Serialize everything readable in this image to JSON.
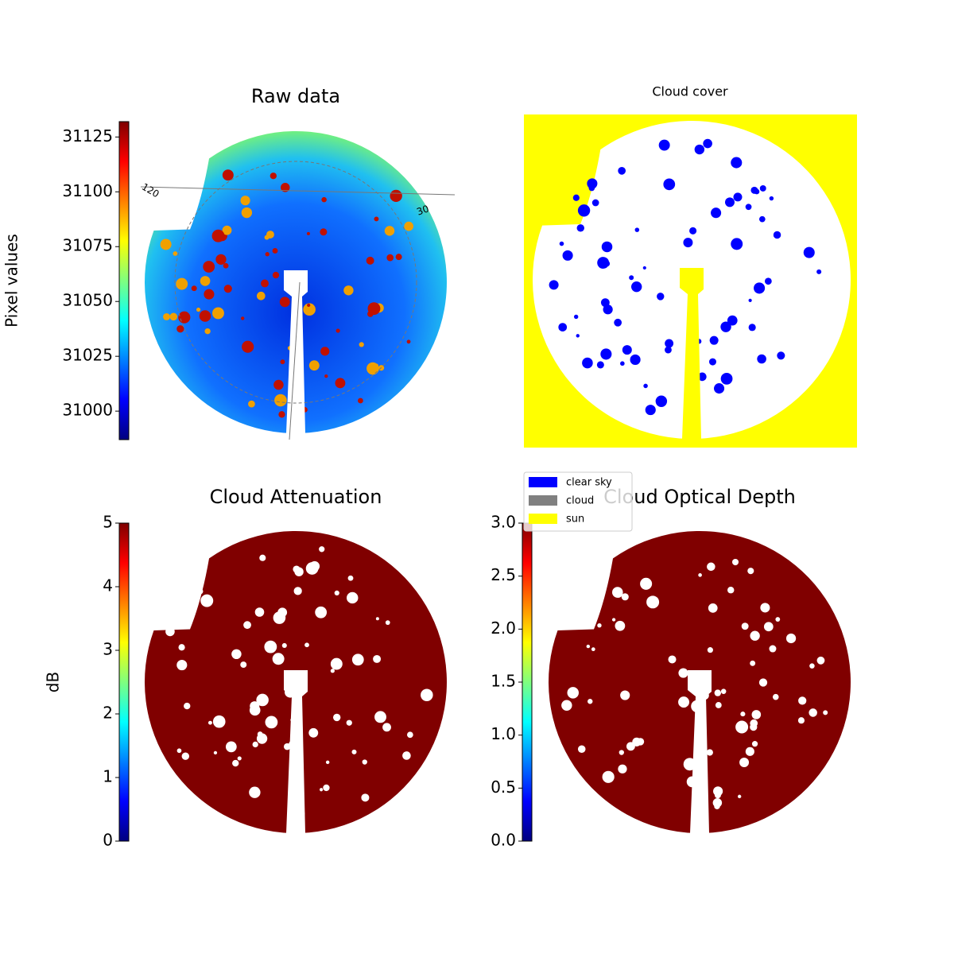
{
  "chart_data": [
    {
      "type": "image",
      "title": "Raw data",
      "colormap": "jet",
      "colorbar": {
        "label": "Pixel values",
        "lim": [
          30987,
          31132
        ],
        "ticks": [
          31000,
          31025,
          31050,
          31075,
          31100,
          31125
        ]
      },
      "annotations": [
        "120",
        "30"
      ]
    },
    {
      "type": "image",
      "title": "Cloud cover",
      "color": "#ffffff",
      "background": "#ffff00",
      "legend": [
        {
          "name": "clear sky",
          "color": "#0000ff"
        },
        {
          "name": "cloud",
          "color": "#808080"
        },
        {
          "name": "sun",
          "color": "#ffff00"
        }
      ]
    },
    {
      "type": "image",
      "title": "Cloud Attenuation",
      "colormap": "jet",
      "color": "#800000",
      "colorbar": {
        "label": "dB",
        "lim": [
          0,
          5
        ],
        "ticks": [
          0,
          1,
          2,
          3,
          4,
          5
        ]
      }
    },
    {
      "type": "image",
      "title": "Cloud Optical Depth",
      "colormap": "jet",
      "color": "#800000",
      "colorbar": {
        "lim": [
          0,
          3
        ],
        "ticks": [
          {
            "value": 0,
            "label": "0.0"
          },
          0.5,
          {
            "value": 1,
            "label": "1.0"
          },
          1.5,
          {
            "value": 2,
            "label": "2.0"
          },
          2.5,
          {
            "value": 3,
            "label": "3.0"
          }
        ]
      }
    }
  ]
}
